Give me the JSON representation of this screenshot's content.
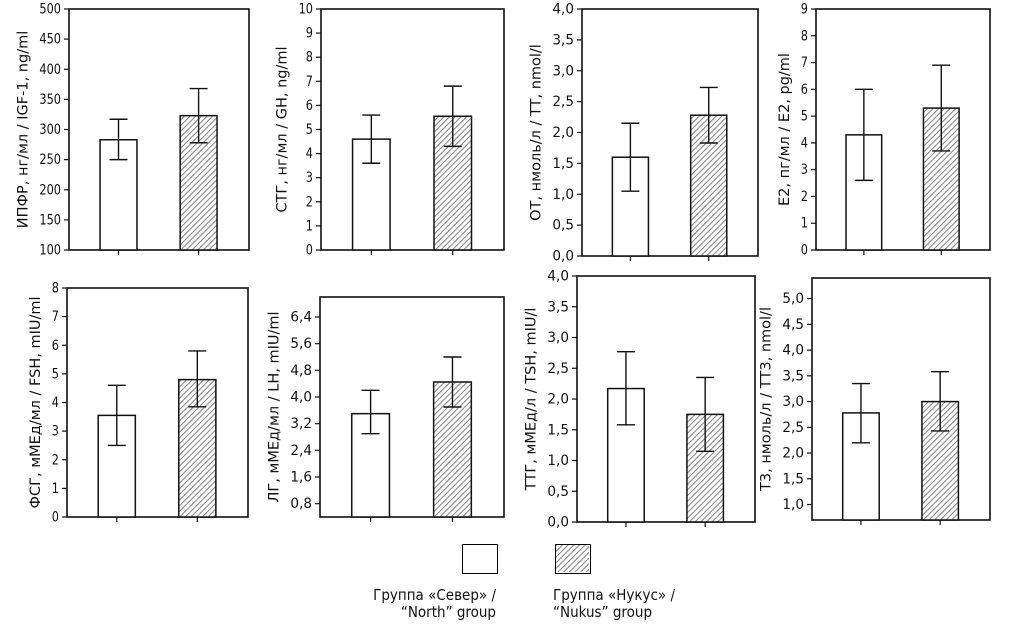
{
  "chart_data": [
    {
      "type": "bar",
      "ylabel": "ИПФР, нг/мл / IGF-1, ng/ml",
      "ylim": [
        100,
        500
      ],
      "ticks": [
        100,
        150,
        200,
        250,
        300,
        350,
        400,
        450,
        500
      ],
      "tick_labels": [
        "100",
        "150",
        "200",
        "250",
        "300",
        "350",
        "400",
        "450",
        "500"
      ],
      "series": [
        {
          "name": "North",
          "value": 283,
          "err_low": 250,
          "err_high": 317
        },
        {
          "name": "Nukus",
          "value": 323,
          "err_low": 278,
          "err_high": 368
        }
      ]
    },
    {
      "type": "bar",
      "ylabel": "СТГ, нг/мл / GH, ng/ml",
      "ylim": [
        0,
        10
      ],
      "ticks": [
        0,
        1,
        2,
        3,
        4,
        5,
        6,
        7,
        8,
        9,
        10
      ],
      "tick_labels": [
        "0",
        "1",
        "2",
        "3",
        "4",
        "5",
        "6",
        "7",
        "8",
        "9",
        "10"
      ],
      "series": [
        {
          "name": "North",
          "value": 4.6,
          "err_low": 3.6,
          "err_high": 5.6
        },
        {
          "name": "Nukus",
          "value": 5.55,
          "err_low": 4.3,
          "err_high": 6.8
        }
      ]
    },
    {
      "type": "bar",
      "ylabel": "ОТ, нмоль/л / TT, nmol/l",
      "ylim": [
        0,
        4
      ],
      "ticks": [
        0,
        0.5,
        1,
        1.5,
        2,
        2.5,
        3,
        3.5,
        4
      ],
      "tick_labels": [
        "0,0",
        "0,5",
        "1,0",
        "1,5",
        "2,0",
        "2,5",
        "3,0",
        "3,5",
        "4,0"
      ],
      "series": [
        {
          "name": "North",
          "value": 1.6,
          "err_low": 1.05,
          "err_high": 2.15
        },
        {
          "name": "Nukus",
          "value": 2.28,
          "err_low": 1.83,
          "err_high": 2.73
        }
      ]
    },
    {
      "type": "bar",
      "ylabel": "Е2, пг/мл / E2, pg/ml",
      "ylim": [
        0,
        9
      ],
      "ticks": [
        0,
        1,
        2,
        3,
        4,
        5,
        6,
        7,
        8,
        9
      ],
      "tick_labels": [
        "0",
        "1",
        "2",
        "3",
        "4",
        "5",
        "6",
        "7",
        "8",
        "9"
      ],
      "series": [
        {
          "name": "North",
          "value": 4.3,
          "err_low": 2.6,
          "err_high": 6.0
        },
        {
          "name": "Nukus",
          "value": 5.3,
          "err_low": 3.7,
          "err_high": 6.9
        }
      ]
    },
    {
      "type": "bar",
      "ylabel": "ФСГ, мМЕд/мл / FSH, mIU/ml",
      "ylim": [
        0,
        8
      ],
      "ticks": [
        0,
        1,
        2,
        3,
        4,
        5,
        6,
        7,
        8
      ],
      "tick_labels": [
        "0",
        "1",
        "2",
        "3",
        "4",
        "5",
        "6",
        "7",
        "8"
      ],
      "series": [
        {
          "name": "North",
          "value": 3.55,
          "err_low": 2.5,
          "err_high": 4.6
        },
        {
          "name": "Nukus",
          "value": 4.8,
          "err_low": 3.85,
          "err_high": 5.8
        }
      ]
    },
    {
      "type": "bar",
      "ylabel": "ЛГ, мМЕд/мл / LH, mIU/ml",
      "ylim": [
        0.4,
        7.0
      ],
      "ticks": [
        0.8,
        1.6,
        2.4,
        3.2,
        4.0,
        4.8,
        5.6,
        6.4
      ],
      "tick_labels": [
        "0,8",
        "1,6",
        "2,4",
        "3,2",
        "4,0",
        "4,8",
        "5,6",
        "6,4"
      ],
      "series": [
        {
          "name": "North",
          "value": 3.5,
          "err_low": 2.9,
          "err_high": 4.2
        },
        {
          "name": "Nukus",
          "value": 4.45,
          "err_low": 3.7,
          "err_high": 5.2
        }
      ]
    },
    {
      "type": "bar",
      "ylabel": "ТТГ, мМЕд/л / TSH, mIU/l",
      "ylim": [
        0,
        4
      ],
      "ticks": [
        0,
        0.5,
        1,
        1.5,
        2,
        2.5,
        3,
        3.5,
        4
      ],
      "tick_labels": [
        "0,0",
        "0,5",
        "1,0",
        "1,5",
        "2,0",
        "2,5",
        "3,0",
        "3,5",
        "4,0"
      ],
      "series": [
        {
          "name": "North",
          "value": 2.17,
          "err_low": 1.58,
          "err_high": 2.77
        },
        {
          "name": "Nukus",
          "value": 1.75,
          "err_low": 1.15,
          "err_high": 2.35
        }
      ]
    },
    {
      "type": "bar",
      "ylabel": "Т3, нмоль/л / ТТ3, nmol/l",
      "ylim": [
        0.7,
        5.4
      ],
      "ticks": [
        1,
        1.5,
        2,
        2.5,
        3,
        3.5,
        4,
        4.5,
        5
      ],
      "tick_labels": [
        "1,0",
        "1,5",
        "2,0",
        "2,5",
        "3,0",
        "3,5",
        "4,0",
        "4,5",
        "5,0"
      ],
      "series": [
        {
          "name": "North",
          "value": 2.78,
          "err_low": 2.2,
          "err_high": 3.35
        },
        {
          "name": "Nukus",
          "value": 3.0,
          "err_low": 2.43,
          "err_high": 3.58
        }
      ]
    }
  ],
  "legend": {
    "north_line1": "Группа «Север» /",
    "north_line2": "“North” group",
    "nukus_line1": "Группа «Нукус» /",
    "nukus_line2": "“Nukus” group"
  },
  "colors": {
    "axis": "#111111",
    "bar_fill": "#ffffff",
    "hatch": "#8a8a8a"
  }
}
